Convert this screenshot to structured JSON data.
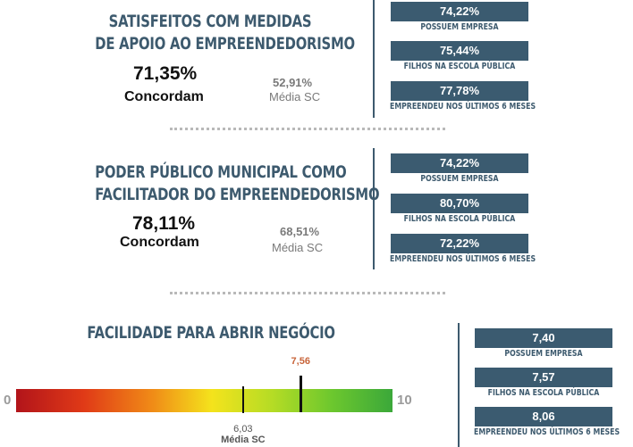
{
  "section1": {
    "title_line1": "SATISFEITOS COM MEDIDAS",
    "title_line2": "DE APOIO AO EMPREENDEDORISMO",
    "percent": "71,35%",
    "percent_label": "Concordam",
    "avg_value": "52,91%",
    "avg_label": "Média SC",
    "stats": [
      {
        "value": "74,22%",
        "label": "POSSUEM EMPRESA"
      },
      {
        "value": "75,44%",
        "label": "FILHOS NA ESCOLA PÚBLICA"
      },
      {
        "value": "77,78%",
        "label": "EMPREENDEU  NOS ÚLTIMOS 6 MESES"
      }
    ]
  },
  "section2": {
    "title_line1": "PODER PÚBLICO MUNICIPAL COMO",
    "title_line2": "FACILITADOR DO EMPREENDEDORISMO",
    "percent": "78,11%",
    "percent_label": "Concordam",
    "avg_value": "68,51%",
    "avg_label": "Média SC",
    "stats": [
      {
        "value": "74,22%",
        "label": "POSSUEM EMPRESA"
      },
      {
        "value": "80,70%",
        "label": "FILHOS NA ESCOLA PÚBLICA"
      },
      {
        "value": "72,22%",
        "label": "EMPREENDEU  NOS ÚLTIMOS 6 MESES"
      }
    ]
  },
  "section3": {
    "title": "FACILIDADE PARA ABRIR NEGÓCIO",
    "scale_min": "0",
    "scale_max": "10",
    "score_value": 7.56,
    "score_label": "7,56",
    "score_color": "#c8643a",
    "avg_value": 6.03,
    "avg_label_value": "6,03",
    "avg_label": "Média SC",
    "stats": [
      {
        "value": "7,40",
        "label": "POSSUEM EMPRESA"
      },
      {
        "value": "7,57",
        "label": "FILHOS NA ESCOLA PÚBLICA"
      },
      {
        "value": "8,06",
        "label": "EMPREENDEU  NOS ÚLTIMOS 6 MESES"
      }
    ]
  },
  "colors": {
    "heading": "#3d5a6e",
    "stat_box": "#3b5b70",
    "divider": "#3d5a6e"
  }
}
